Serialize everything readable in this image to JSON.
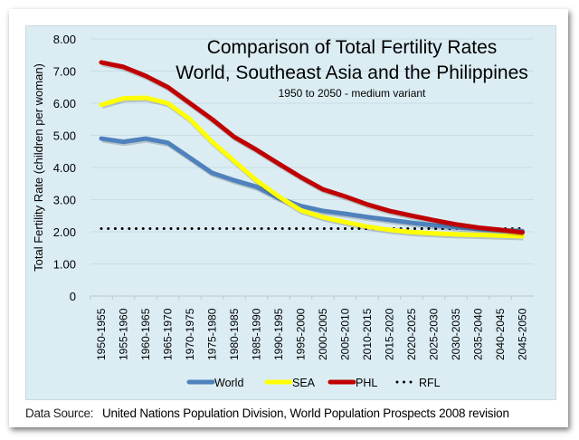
{
  "chart_data": {
    "type": "line",
    "title": "Comparison of Total Fertility Rates",
    "title_line2": "World, Southeast Asia and the Philippines",
    "subtitle": "1950 to 2050 - medium variant",
    "xlabel": "",
    "ylabel": "Total Fertility Rate (children per woman)",
    "ylim": [
      0,
      8
    ],
    "yticks": [
      "0",
      "1.00",
      "2.00",
      "3.00",
      "4.00",
      "5.00",
      "6.00",
      "7.00",
      "8.00"
    ],
    "grid": true,
    "legend": "bottom",
    "categories": [
      "1950-1955",
      "1955-1960",
      "1960-1965",
      "1965-1970",
      "1970-1975",
      "1975-1980",
      "1980-1985",
      "1985-1990",
      "1990-1995",
      "1995-2000",
      "2000-2005",
      "2005-2010",
      "2010-2015",
      "2015-2020",
      "2020-2025",
      "2025-2030",
      "2030-2035",
      "2035-2040",
      "2040-2045",
      "2045-2050"
    ],
    "series": [
      {
        "name": "World",
        "color": "#4f81bd",
        "style": "solid",
        "values": [
          4.9,
          4.8,
          4.9,
          4.77,
          4.3,
          3.83,
          3.6,
          3.4,
          3.05,
          2.8,
          2.65,
          2.56,
          2.46,
          2.37,
          2.28,
          2.2,
          2.14,
          2.09,
          2.05,
          2.02
        ]
      },
      {
        "name": "SEA",
        "color": "#ffff00",
        "style": "solid",
        "values": [
          5.95,
          6.15,
          6.17,
          6.0,
          5.5,
          4.8,
          4.2,
          3.6,
          3.1,
          2.67,
          2.45,
          2.3,
          2.16,
          2.06,
          1.99,
          1.95,
          1.92,
          1.9,
          1.88,
          1.86
        ]
      },
      {
        "name": "PHL",
        "color": "#c00000",
        "style": "solid",
        "values": [
          7.27,
          7.13,
          6.85,
          6.5,
          6.0,
          5.5,
          4.95,
          4.55,
          4.12,
          3.7,
          3.32,
          3.1,
          2.85,
          2.65,
          2.5,
          2.36,
          2.23,
          2.13,
          2.06,
          1.98
        ]
      },
      {
        "name": "RFL",
        "color": "#000000",
        "style": "dotted",
        "values": [
          2.1,
          2.1,
          2.1,
          2.1,
          2.1,
          2.1,
          2.1,
          2.1,
          2.1,
          2.1,
          2.1,
          2.1,
          2.1,
          2.1,
          2.1,
          2.1,
          2.1,
          2.1,
          2.1,
          2.1
        ]
      }
    ]
  },
  "source": {
    "label": "Data Source:",
    "text": "United Nations Population Division, World Population Prospects 2008 revision"
  }
}
